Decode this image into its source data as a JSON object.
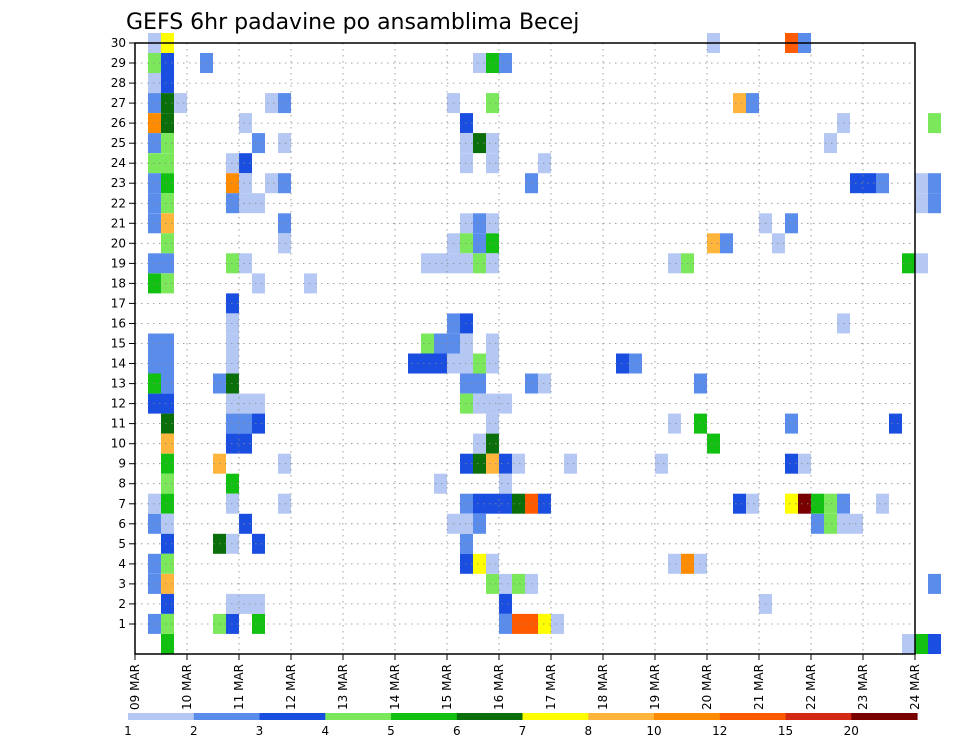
{
  "chart_data": {
    "type": "heatmap",
    "title": "GEFS 6hr padavine po ansamblima Becej",
    "xlabel": "",
    "ylabel": "",
    "x_tick_labels": [
      "09 MAR",
      "10 MAR",
      "11 MAR",
      "12 MAR",
      "13 MAR",
      "14 MAR",
      "15 MAR",
      "16 MAR",
      "17 MAR",
      "18 MAR",
      "19 MAR",
      "20 MAR",
      "21 MAR",
      "22 MAR",
      "23 MAR",
      "24 MAR"
    ],
    "x_steps_per_day": 4,
    "xlim_steps": [
      0,
      60
    ],
    "y_tick_labels": [
      "1",
      "2",
      "3",
      "4",
      "5",
      "6",
      "7",
      "8",
      "9",
      "10",
      "11",
      "12",
      "13",
      "14",
      "15",
      "16",
      "17",
      "18",
      "19",
      "20",
      "21",
      "22",
      "23",
      "24",
      "25",
      "26",
      "27",
      "28",
      "29",
      "30"
    ],
    "ylim_members": [
      0,
      30
    ],
    "grid": true,
    "legend_position": "bottom",
    "colorbar": {
      "labels": [
        "1",
        "2",
        "3",
        "4",
        "5",
        "6",
        "7",
        "8",
        "10",
        "12",
        "15",
        "20"
      ],
      "colors": [
        "#b5c8f4",
        "#5a8cec",
        "#1a4ee0",
        "#7ae85a",
        "#12c012",
        "#0a6e0a",
        "#ffff00",
        "#ffb43c",
        "#ff8c00",
        "#ff5a00",
        "#d22814",
        "#780000"
      ]
    },
    "cells": [
      [
        1,
        30,
        1
      ],
      [
        1,
        29,
        4
      ],
      [
        1,
        28,
        1
      ],
      [
        1,
        27,
        2
      ],
      [
        1,
        26,
        9
      ],
      [
        1,
        25,
        2
      ],
      [
        1,
        24,
        4
      ],
      [
        1,
        23,
        2
      ],
      [
        1,
        22,
        2
      ],
      [
        1,
        21,
        2
      ],
      [
        1,
        19,
        2
      ],
      [
        1,
        18,
        5
      ],
      [
        1,
        15,
        2
      ],
      [
        1,
        14,
        2
      ],
      [
        1,
        13,
        5
      ],
      [
        1,
        12,
        3
      ],
      [
        1,
        7,
        1
      ],
      [
        1,
        6,
        2
      ],
      [
        1,
        4,
        2
      ],
      [
        1,
        3,
        2
      ],
      [
        1,
        1,
        2
      ],
      [
        2,
        30,
        7
      ],
      [
        2,
        29,
        3
      ],
      [
        2,
        28,
        3
      ],
      [
        2,
        27,
        6
      ],
      [
        2,
        26,
        6
      ],
      [
        2,
        25,
        4
      ],
      [
        2,
        24,
        4
      ],
      [
        2,
        23,
        5
      ],
      [
        2,
        22,
        4
      ],
      [
        2,
        21,
        8
      ],
      [
        2,
        20,
        4
      ],
      [
        2,
        19,
        2
      ],
      [
        2,
        18,
        4
      ],
      [
        2,
        15,
        2
      ],
      [
        2,
        14,
        2
      ],
      [
        2,
        13,
        2
      ],
      [
        2,
        12,
        3
      ],
      [
        2,
        11,
        6
      ],
      [
        2,
        10,
        8
      ],
      [
        2,
        9,
        5
      ],
      [
        2,
        8,
        4
      ],
      [
        2,
        7,
        5
      ],
      [
        2,
        6,
        1
      ],
      [
        2,
        5,
        3
      ],
      [
        2,
        4,
        4
      ],
      [
        2,
        3,
        8
      ],
      [
        2,
        2,
        3
      ],
      [
        2,
        1,
        4
      ],
      [
        2,
        0,
        5
      ],
      [
        3,
        27,
        1
      ],
      [
        5,
        29,
        2
      ],
      [
        6,
        5,
        6
      ],
      [
        6,
        13,
        2
      ],
      [
        6,
        9,
        8
      ],
      [
        6,
        1,
        4
      ],
      [
        7,
        24,
        1
      ],
      [
        7,
        23,
        9
      ],
      [
        7,
        22,
        2
      ],
      [
        7,
        19,
        4
      ],
      [
        7,
        17,
        3
      ],
      [
        7,
        16,
        1
      ],
      [
        7,
        15,
        1
      ],
      [
        7,
        14,
        1
      ],
      [
        7,
        13,
        6
      ],
      [
        7,
        12,
        1
      ],
      [
        7,
        11,
        2
      ],
      [
        7,
        10,
        3
      ],
      [
        7,
        8,
        5
      ],
      [
        7,
        7,
        1
      ],
      [
        7,
        5,
        1
      ],
      [
        7,
        1,
        3
      ],
      [
        7,
        2,
        1
      ],
      [
        8,
        26,
        1
      ],
      [
        8,
        24,
        3
      ],
      [
        8,
        23,
        1
      ],
      [
        8,
        22,
        1
      ],
      [
        8,
        19,
        1
      ],
      [
        8,
        12,
        1
      ],
      [
        8,
        11,
        2
      ],
      [
        8,
        10,
        3
      ],
      [
        8,
        6,
        3
      ],
      [
        8,
        2,
        1
      ],
      [
        9,
        25,
        2
      ],
      [
        9,
        22,
        1
      ],
      [
        9,
        18,
        1
      ],
      [
        9,
        12,
        1
      ],
      [
        9,
        11,
        3
      ],
      [
        9,
        5,
        3
      ],
      [
        9,
        1,
        5
      ],
      [
        9,
        2,
        1
      ],
      [
        10,
        27,
        1
      ],
      [
        10,
        23,
        1
      ],
      [
        11,
        27,
        2
      ],
      [
        11,
        25,
        1
      ],
      [
        11,
        23,
        2
      ],
      [
        11,
        21,
        2
      ],
      [
        11,
        20,
        1
      ],
      [
        11,
        9,
        1
      ],
      [
        11,
        7,
        1
      ],
      [
        13,
        18,
        1
      ],
      [
        21,
        14,
        3
      ],
      [
        22,
        14,
        3
      ],
      [
        22,
        15,
        4
      ],
      [
        22,
        19,
        1
      ],
      [
        23,
        15,
        2
      ],
      [
        23,
        14,
        3
      ],
      [
        23,
        19,
        1
      ],
      [
        23,
        8,
        1
      ],
      [
        24,
        15,
        2
      ],
      [
        24,
        16,
        2
      ],
      [
        24,
        14,
        1
      ],
      [
        24,
        27,
        1
      ],
      [
        24,
        20,
        1
      ],
      [
        24,
        19,
        1
      ],
      [
        24,
        6,
        1
      ],
      [
        25,
        16,
        3
      ],
      [
        25,
        15,
        1
      ],
      [
        25,
        14,
        1
      ],
      [
        25,
        26,
        3
      ],
      [
        25,
        25,
        1
      ],
      [
        25,
        24,
        1
      ],
      [
        25,
        21,
        1
      ],
      [
        25,
        20,
        4
      ],
      [
        25,
        19,
        1
      ],
      [
        25,
        13,
        2
      ],
      [
        25,
        12,
        4
      ],
      [
        25,
        9,
        3
      ],
      [
        25,
        7,
        2
      ],
      [
        25,
        5,
        2
      ],
      [
        25,
        6,
        1
      ],
      [
        25,
        4,
        3
      ],
      [
        26,
        25,
        6
      ],
      [
        26,
        21,
        2
      ],
      [
        26,
        20,
        2
      ],
      [
        26,
        19,
        4
      ],
      [
        26,
        14,
        4
      ],
      [
        26,
        13,
        2
      ],
      [
        26,
        12,
        1
      ],
      [
        26,
        10,
        1
      ],
      [
        26,
        9,
        6
      ],
      [
        26,
        7,
        3
      ],
      [
        26,
        6,
        2
      ],
      [
        26,
        4,
        7
      ],
      [
        26,
        29,
        1
      ],
      [
        27,
        29,
        5
      ],
      [
        27,
        27,
        4
      ],
      [
        27,
        25,
        1
      ],
      [
        27,
        24,
        1
      ],
      [
        27,
        21,
        1
      ],
      [
        27,
        20,
        5
      ],
      [
        27,
        19,
        1
      ],
      [
        27,
        15,
        1
      ],
      [
        27,
        14,
        1
      ],
      [
        27,
        12,
        1
      ],
      [
        27,
        11,
        1
      ],
      [
        27,
        10,
        6
      ],
      [
        27,
        9,
        8
      ],
      [
        27,
        7,
        3
      ],
      [
        27,
        3,
        4
      ],
      [
        27,
        4,
        1
      ],
      [
        28,
        29,
        2
      ],
      [
        28,
        12,
        1
      ],
      [
        28,
        9,
        3
      ],
      [
        28,
        8,
        1
      ],
      [
        28,
        7,
        3
      ],
      [
        28,
        3,
        1
      ],
      [
        28,
        2,
        3
      ],
      [
        28,
        1,
        2
      ],
      [
        29,
        9,
        1
      ],
      [
        29,
        7,
        6
      ],
      [
        29,
        3,
        4
      ],
      [
        29,
        1,
        10
      ],
      [
        30,
        23,
        2
      ],
      [
        30,
        13,
        2
      ],
      [
        30,
        7,
        10
      ],
      [
        30,
        3,
        1
      ],
      [
        30,
        1,
        10
      ],
      [
        31,
        24,
        1
      ],
      [
        31,
        13,
        1
      ],
      [
        31,
        7,
        3
      ],
      [
        31,
        1,
        7
      ],
      [
        32,
        1,
        1
      ],
      [
        33,
        9,
        1
      ],
      [
        37,
        14,
        3
      ],
      [
        38,
        14,
        2
      ],
      [
        40,
        9,
        1
      ],
      [
        41,
        19,
        1
      ],
      [
        41,
        11,
        1
      ],
      [
        41,
        4,
        1
      ],
      [
        42,
        19,
        4
      ],
      [
        42,
        4,
        9
      ],
      [
        43,
        13,
        2
      ],
      [
        43,
        11,
        5
      ],
      [
        43,
        4,
        1
      ],
      [
        44,
        30,
        1
      ],
      [
        44,
        10,
        5
      ],
      [
        44,
        20,
        8
      ],
      [
        45,
        20,
        2
      ],
      [
        46,
        27,
        8
      ],
      [
        46,
        7,
        3
      ],
      [
        47,
        27,
        2
      ],
      [
        47,
        7,
        1
      ],
      [
        48,
        2,
        1
      ],
      [
        48,
        21,
        1
      ],
      [
        49,
        20,
        1
      ],
      [
        50,
        30,
        10
      ],
      [
        50,
        11,
        2
      ],
      [
        50,
        9,
        3
      ],
      [
        50,
        21,
        2
      ],
      [
        50,
        7,
        7
      ],
      [
        51,
        30,
        2
      ],
      [
        51,
        9,
        1
      ],
      [
        51,
        7,
        12
      ],
      [
        52,
        7,
        5
      ],
      [
        52,
        6,
        2
      ],
      [
        53,
        7,
        4
      ],
      [
        53,
        6,
        4
      ],
      [
        53,
        25,
        1
      ],
      [
        54,
        7,
        2
      ],
      [
        54,
        6,
        1
      ],
      [
        54,
        26,
        1
      ],
      [
        54,
        16,
        1
      ],
      [
        55,
        23,
        3
      ],
      [
        55,
        6,
        1
      ],
      [
        56,
        23,
        3
      ],
      [
        57,
        23,
        2
      ],
      [
        57,
        7,
        1
      ],
      [
        58,
        11,
        3
      ],
      [
        59,
        19,
        5
      ],
      [
        60,
        19,
        1
      ],
      [
        60,
        22,
        1
      ],
      [
        60,
        23,
        1
      ],
      [
        61,
        23,
        2
      ],
      [
        61,
        22,
        2
      ],
      [
        61,
        26,
        4
      ],
      [
        61,
        3,
        2
      ],
      [
        59,
        0,
        1
      ],
      [
        60,
        0,
        5
      ],
      [
        61,
        0,
        3
      ]
    ]
  }
}
